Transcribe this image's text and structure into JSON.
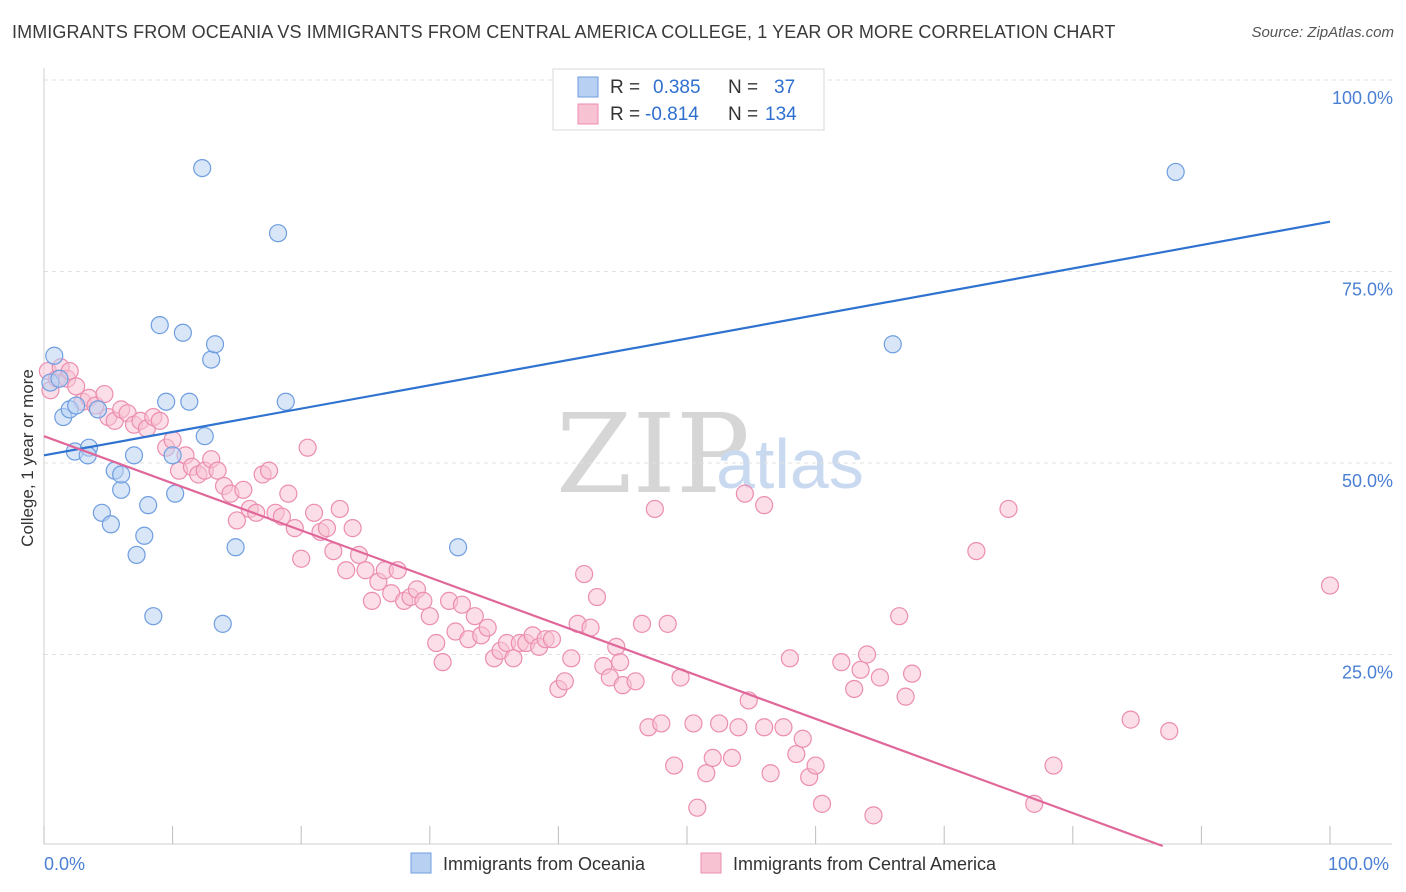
{
  "title": "IMMIGRANTS FROM OCEANIA VS IMMIGRANTS FROM CENTRAL AMERICA COLLEGE, 1 YEAR OR MORE CORRELATION CHART",
  "source": "Source: ZipAtlas.com",
  "watermark": {
    "zip": "ZIP",
    "atlas": "atlas"
  },
  "legend": {
    "r_label": "R =",
    "n_label": "N =",
    "rows": [
      {
        "r": "0.385",
        "n": "37"
      },
      {
        "r": "-0.814",
        "n": "134"
      }
    ]
  },
  "colors": {
    "oceania_fill": "#b8d1f2",
    "oceania_stroke": "#6f9ee0",
    "oceania_line": "#2f72d0",
    "central_fill": "#f7c3d3",
    "central_stroke": "#ec8db0",
    "central_line": "#e0679a",
    "grid": "#e2e2e2",
    "tick_text": "#4a7fd4"
  },
  "chart_data": {
    "type": "scatter",
    "title": "IMMIGRANTS FROM OCEANIA VS IMMIGRANTS FROM CENTRAL AMERICA COLLEGE, 1 YEAR OR MORE CORRELATION CHART",
    "xlabel": "",
    "ylabel": "College, 1 year or more",
    "xlim": [
      0,
      100
    ],
    "ylim": [
      0,
      100
    ],
    "x_tick_labels": [
      "0.0%",
      "100.0%"
    ],
    "y_tick_labels": [
      "100.0%",
      "75.0%",
      "50.0%",
      "25.0%"
    ],
    "y_ticks": [
      100,
      75,
      50,
      25
    ],
    "grid": true,
    "legend_position": "top-center",
    "series": [
      {
        "name": "Immigrants from Oceania",
        "r": 0.385,
        "n": 37,
        "trendline": {
          "x": [
            0,
            100
          ],
          "y": [
            51.0,
            81.5
          ]
        },
        "points": [
          [
            0.5,
            60.5
          ],
          [
            0.8,
            64.0
          ],
          [
            1.2,
            61.0
          ],
          [
            1.5,
            56.0
          ],
          [
            2.0,
            57.0
          ],
          [
            2.5,
            57.5
          ],
          [
            2.4,
            51.5
          ],
          [
            3.5,
            52.0
          ],
          [
            3.4,
            51.0
          ],
          [
            4.2,
            57.0
          ],
          [
            4.5,
            43.5
          ],
          [
            5.2,
            42.0
          ],
          [
            5.5,
            49.0
          ],
          [
            6.0,
            46.5
          ],
          [
            6.0,
            48.5
          ],
          [
            7.0,
            51.0
          ],
          [
            7.2,
            38.0
          ],
          [
            7.8,
            40.5
          ],
          [
            8.1,
            44.5
          ],
          [
            8.5,
            30.0
          ],
          [
            9.0,
            68.0
          ],
          [
            9.5,
            58.0
          ],
          [
            10.0,
            51.0
          ],
          [
            10.2,
            46.0
          ],
          [
            10.8,
            67.0
          ],
          [
            12.3,
            88.5
          ],
          [
            12.5,
            53.5
          ],
          [
            13.0,
            63.5
          ],
          [
            13.3,
            65.5
          ],
          [
            11.3,
            58.0
          ],
          [
            13.9,
            29.0
          ],
          [
            14.9,
            39.0
          ],
          [
            18.2,
            80.0
          ],
          [
            18.8,
            58.0
          ],
          [
            32.2,
            39.0
          ],
          [
            66.0,
            65.5
          ],
          [
            88.0,
            88.0
          ]
        ]
      },
      {
        "name": "Immigrants from Central America",
        "r": -0.814,
        "n": 134,
        "trendline": {
          "x": [
            0,
            100
          ],
          "y": [
            53.5,
            -8.0
          ]
        },
        "points": [
          [
            0.3,
            62.0
          ],
          [
            0.5,
            59.5
          ],
          [
            1.0,
            61.0
          ],
          [
            1.3,
            62.5
          ],
          [
            1.8,
            61.0
          ],
          [
            2.0,
            62.0
          ],
          [
            2.5,
            60.0
          ],
          [
            3.0,
            58.0
          ],
          [
            3.5,
            58.5
          ],
          [
            4.0,
            57.5
          ],
          [
            4.7,
            59.0
          ],
          [
            5.0,
            56.0
          ],
          [
            5.5,
            55.5
          ],
          [
            6.0,
            57.0
          ],
          [
            6.5,
            56.5
          ],
          [
            7.0,
            55.0
          ],
          [
            7.5,
            55.5
          ],
          [
            8.0,
            54.5
          ],
          [
            8.5,
            56.0
          ],
          [
            9.0,
            55.5
          ],
          [
            9.5,
            52.0
          ],
          [
            10.0,
            53.0
          ],
          [
            10.5,
            49.0
          ],
          [
            11.0,
            51.0
          ],
          [
            11.5,
            49.5
          ],
          [
            12.0,
            48.5
          ],
          [
            12.5,
            49.0
          ],
          [
            13.0,
            50.5
          ],
          [
            13.5,
            49.0
          ],
          [
            14.0,
            47.0
          ],
          [
            14.5,
            46.0
          ],
          [
            15.0,
            42.5
          ],
          [
            15.5,
            46.5
          ],
          [
            16.0,
            44.0
          ],
          [
            16.5,
            43.5
          ],
          [
            17.0,
            48.5
          ],
          [
            17.5,
            49.0
          ],
          [
            18.0,
            43.5
          ],
          [
            18.5,
            43.0
          ],
          [
            19.0,
            46.0
          ],
          [
            19.5,
            41.5
          ],
          [
            20.0,
            37.5
          ],
          [
            20.5,
            52.0
          ],
          [
            21.0,
            43.5
          ],
          [
            21.5,
            41.0
          ],
          [
            22.0,
            41.5
          ],
          [
            22.5,
            38.5
          ],
          [
            23.0,
            44.0
          ],
          [
            23.5,
            36.0
          ],
          [
            24.0,
            41.5
          ],
          [
            24.5,
            38.0
          ],
          [
            25.0,
            36.0
          ],
          [
            25.5,
            32.0
          ],
          [
            26.0,
            34.5
          ],
          [
            26.5,
            36.0
          ],
          [
            27.0,
            33.0
          ],
          [
            27.5,
            36.0
          ],
          [
            28.0,
            32.0
          ],
          [
            28.5,
            32.5
          ],
          [
            29.0,
            33.5
          ],
          [
            29.5,
            32.0
          ],
          [
            30.0,
            30.0
          ],
          [
            30.5,
            26.5
          ],
          [
            31.0,
            24.0
          ],
          [
            31.5,
            32.0
          ],
          [
            32.0,
            28.0
          ],
          [
            32.5,
            31.5
          ],
          [
            33.0,
            27.0
          ],
          [
            33.5,
            30.0
          ],
          [
            34.0,
            27.5
          ],
          [
            34.5,
            28.5
          ],
          [
            35.0,
            24.5
          ],
          [
            35.5,
            25.5
          ],
          [
            36.0,
            26.5
          ],
          [
            36.5,
            24.5
          ],
          [
            37.0,
            26.5
          ],
          [
            37.5,
            26.5
          ],
          [
            38.0,
            27.5
          ],
          [
            38.5,
            26.0
          ],
          [
            39.0,
            27.0
          ],
          [
            39.5,
            27.0
          ],
          [
            40.0,
            20.5
          ],
          [
            40.5,
            21.5
          ],
          [
            41.0,
            24.5
          ],
          [
            41.5,
            29.0
          ],
          [
            42.0,
            35.5
          ],
          [
            42.5,
            28.5
          ],
          [
            43.0,
            32.5
          ],
          [
            43.5,
            23.5
          ],
          [
            44.0,
            22.0
          ],
          [
            44.5,
            26.0
          ],
          [
            44.8,
            24.0
          ],
          [
            45.0,
            21.0
          ],
          [
            46.0,
            21.5
          ],
          [
            46.5,
            29.0
          ],
          [
            47.0,
            15.5
          ],
          [
            47.5,
            44.0
          ],
          [
            48.0,
            16.0
          ],
          [
            48.5,
            29.0
          ],
          [
            49.0,
            10.5
          ],
          [
            49.5,
            22.0
          ],
          [
            50.5,
            16.0
          ],
          [
            50.8,
            5.0
          ],
          [
            51.5,
            9.5
          ],
          [
            52.0,
            11.5
          ],
          [
            52.5,
            16.0
          ],
          [
            53.5,
            11.5
          ],
          [
            54.0,
            15.5
          ],
          [
            54.5,
            46.0
          ],
          [
            54.8,
            19.0
          ],
          [
            56.0,
            44.5
          ],
          [
            56.0,
            15.5
          ],
          [
            56.5,
            9.5
          ],
          [
            57.5,
            15.5
          ],
          [
            58.0,
            24.5
          ],
          [
            58.5,
            12.0
          ],
          [
            59.0,
            14.0
          ],
          [
            59.5,
            9.0
          ],
          [
            60.0,
            10.5
          ],
          [
            60.5,
            5.5
          ],
          [
            62.0,
            24.0
          ],
          [
            63.0,
            20.5
          ],
          [
            63.5,
            23.0
          ],
          [
            64.0,
            25.0
          ],
          [
            64.5,
            4.0
          ],
          [
            65.0,
            22.0
          ],
          [
            66.5,
            30.0
          ],
          [
            67.0,
            19.5
          ],
          [
            67.5,
            22.5
          ],
          [
            72.5,
            38.5
          ],
          [
            75.0,
            44.0
          ],
          [
            77.0,
            5.5
          ],
          [
            78.5,
            10.5
          ],
          [
            84.5,
            16.5
          ],
          [
            87.5,
            15.0
          ],
          [
            100.0,
            34.0
          ]
        ]
      }
    ]
  },
  "bottom_legend": {
    "items": [
      "Immigrants from Oceania",
      "Immigrants from Central America"
    ]
  }
}
